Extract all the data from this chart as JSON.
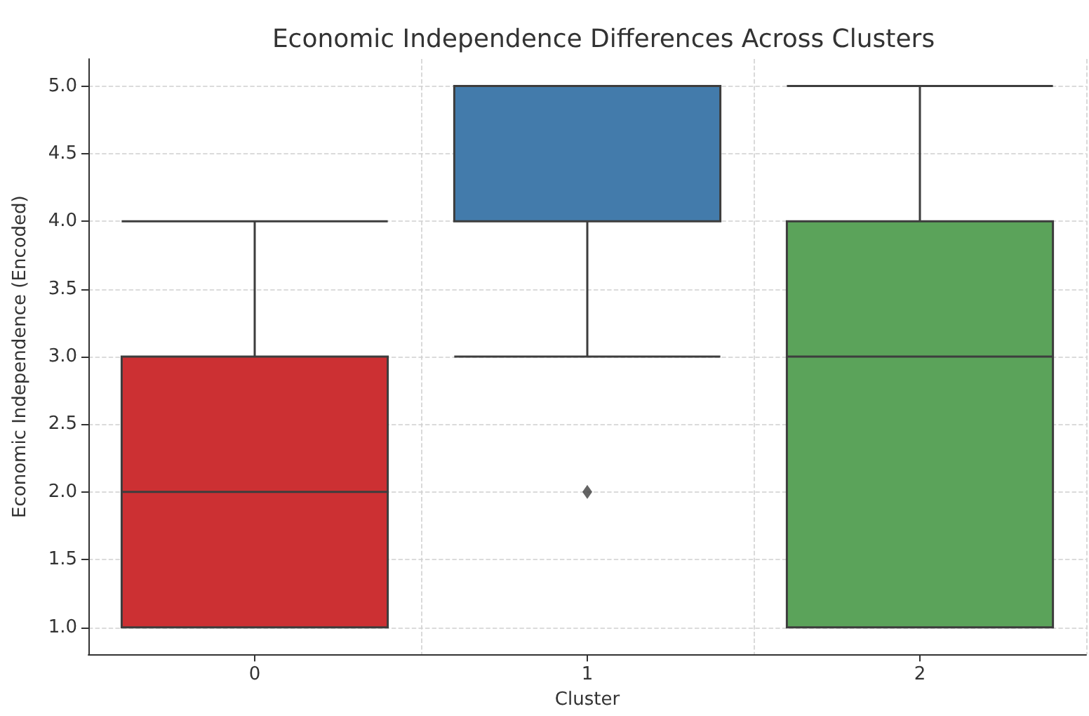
{
  "chart_data": {
    "type": "box",
    "title": "Economic Independence Differences Across Clusters",
    "xlabel": "Cluster",
    "ylabel": "Economic Independence (Encoded)",
    "categories": [
      "0",
      "1",
      "2"
    ],
    "colors": [
      "#cc3033",
      "#437bab",
      "#5ba35a"
    ],
    "boxes": [
      {
        "low": 1,
        "q1": 1,
        "median": 2,
        "q3": 3,
        "high": 4
      },
      {
        "low": 3,
        "q1": 4,
        "median": 5,
        "q3": 5,
        "high": 5,
        "outliers": [
          2
        ]
      },
      {
        "low": 1,
        "q1": 1,
        "median": 3,
        "q3": 4,
        "high": 5
      }
    ],
    "ylim": [
      0.8,
      5.2
    ],
    "yticks": [
      {
        "value": 1,
        "label": "1.0"
      },
      {
        "value": 1.5,
        "label": "1.5"
      },
      {
        "value": 2,
        "label": "2.0"
      },
      {
        "value": 2.5,
        "label": "2.5"
      },
      {
        "value": 3,
        "label": "3.0"
      },
      {
        "value": 3.5,
        "label": "3.5"
      },
      {
        "value": 4,
        "label": "4.0"
      },
      {
        "value": 4.5,
        "label": "4.5"
      },
      {
        "value": 5,
        "label": "5.0"
      }
    ],
    "grid": true,
    "marker": "diamond"
  }
}
